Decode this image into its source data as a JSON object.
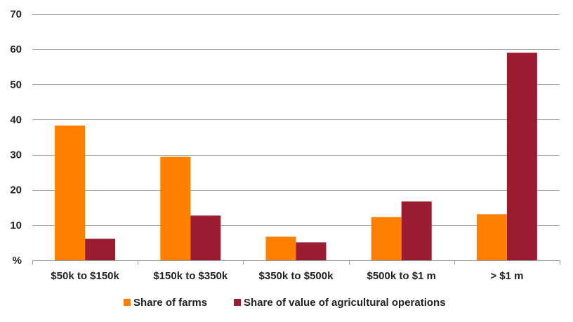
{
  "chart_data": {
    "type": "bar",
    "categories": [
      "$50k to $150k",
      "$150k to $350k",
      "$350k to $500k",
      "$500k to $1 m",
      "> $1 m"
    ],
    "series": [
      {
        "name": "Share of farms",
        "values": [
          38.3,
          29.4,
          6.7,
          12.3,
          13.1
        ],
        "color": "#FF8000"
      },
      {
        "name": "Share of value of agricultural operations",
        "values": [
          6.1,
          12.7,
          5.1,
          16.7,
          59.0
        ],
        "color": "#9B1B30"
      }
    ],
    "y_ticks": [
      "%",
      "10",
      "20",
      "30",
      "40",
      "50",
      "60",
      "70"
    ],
    "ylim": [
      0,
      70
    ],
    "grid": true,
    "legend_position": "bottom"
  }
}
